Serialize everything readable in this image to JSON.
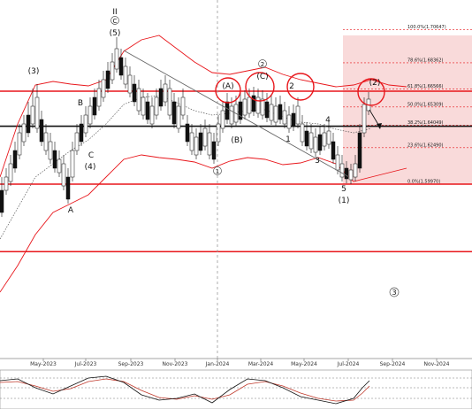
{
  "chart_data": {
    "type": "candlestick",
    "x_ticks": [
      "May-2023",
      "Jul-2023",
      "Sep-2023",
      "Nov-2023",
      "Jan-2024",
      "Mar-2024",
      "May-2024",
      "Jul-2024",
      "Sep-2024",
      "Nov-2024"
    ],
    "fib_levels": [
      {
        "label": "100.0%(1.70647)",
        "value": 1.70647
      },
      {
        "label": "78.6%(1.68362)",
        "value": 1.68362
      },
      {
        "label": "61.8%(1.66566)",
        "value": 1.66566
      },
      {
        "label": "50.0%(1.65309)",
        "value": 1.65309
      },
      {
        "label": "38.2%(1.64049)",
        "value": 1.64049
      },
      {
        "label": "23.6%(1.62490)",
        "value": 1.6249
      },
      {
        "label": "0.0%(1.59970)",
        "value": 1.5997
      }
    ],
    "horizontal_lines": [
      {
        "value": 1.664,
        "color": "#e8161b"
      },
      {
        "value": 1.6398,
        "color": "#111111"
      },
      {
        "value": 1.5997,
        "color": "#e8161b"
      },
      {
        "value": 1.553,
        "color": "#e8161b"
      }
    ],
    "wave_labels": [
      "II",
      "C",
      "(5)",
      "(3)",
      "B",
      "C",
      "(4)",
      "A",
      "(A)",
      "(B)",
      "1",
      "(C)",
      "2",
      "1",
      "2",
      "4",
      "3",
      "5",
      "(1)",
      "(2)",
      "3"
    ],
    "colors": {
      "bollinger": "#e8161b",
      "support_resistance": "#e8161b",
      "fib_zone": "#f9dada",
      "bull_candle": "#ffffff",
      "bear_candle": "#111111",
      "oscillator_fast": "#111111",
      "oscillator_slow": "#c0392b"
    }
  },
  "labels": {
    "wave_II": "II",
    "wave_C_circ": "C",
    "wave_5p": "(5)",
    "wave_3p": "(3)",
    "wave_B": "B",
    "wave_C": "C",
    "wave_4p": "(4)",
    "wave_A": "A",
    "wave_Ap": "(A)",
    "wave_Bp": "(B)",
    "wave_1_circ": "1",
    "wave_2_circ": "2",
    "wave_Cp": "(C)",
    "wave_2": "2",
    "wave_1": "1",
    "wave_4": "4",
    "wave_3": "3",
    "wave_5": "5",
    "wave_1p": "(1)",
    "wave_2p": "(2)",
    "wave_3_circ": "3"
  }
}
